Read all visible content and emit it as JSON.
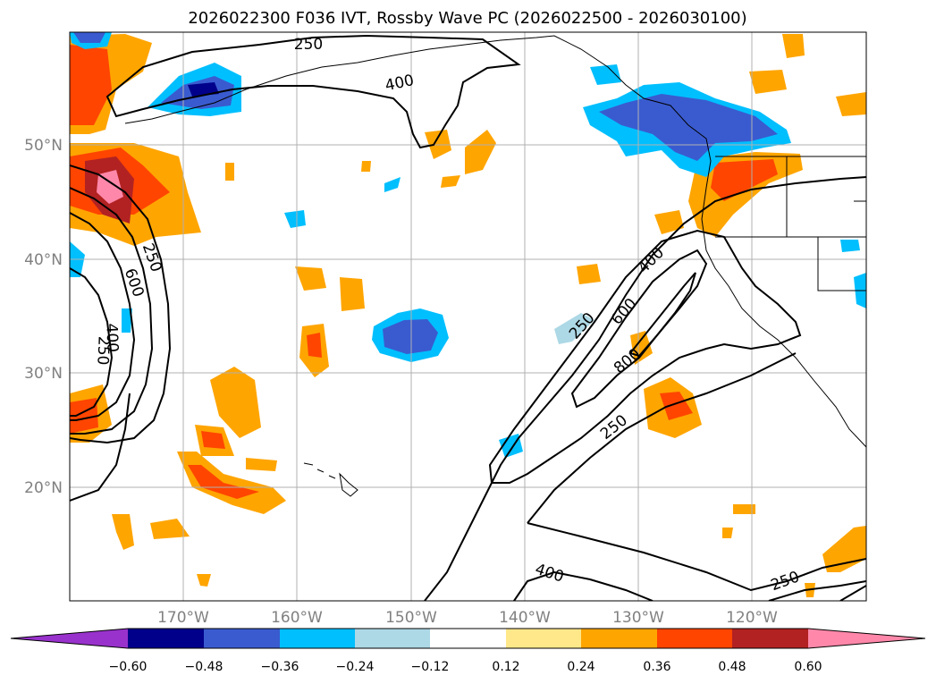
{
  "title": "2026022300 F036 IVT, Rossby Wave PC (2026022500 - 2026030100)",
  "map": {
    "lat_labels": [
      "50°N",
      "40°N",
      "30°N",
      "20°N"
    ],
    "lon_labels": [
      "170°W",
      "160°W",
      "150°W",
      "140°W",
      "130°W",
      "120°W"
    ],
    "contour_labels": [
      "250",
      "400",
      "250",
      "600",
      "400",
      "250",
      "250",
      "600",
      "400",
      "800",
      "250",
      "400",
      "250"
    ]
  },
  "colorbar": {
    "ticks": [
      "−0.60",
      "−0.48",
      "−0.36",
      "−0.24",
      "−0.12",
      "0.12",
      "0.24",
      "0.36",
      "0.48",
      "0.60"
    ],
    "colors": [
      "#9932cc",
      "#00008b",
      "#3a5bcf",
      "#00bfff",
      "#add8e6",
      "#ffffff",
      "#ffe88a",
      "#ffa500",
      "#ff4500",
      "#b22222",
      "#ff88aa"
    ]
  },
  "colors": {
    "strong_positive": "#ff4500",
    "positive": "#ffa500",
    "weak_positive": "#ffe88a",
    "weak_negative": "#add8e6",
    "negative": "#00bfff",
    "strong_negative": "#3a5bcf",
    "darkest_negative": "#00008b",
    "max_positive": "#b22222",
    "extreme_positive": "#ff88aa"
  }
}
